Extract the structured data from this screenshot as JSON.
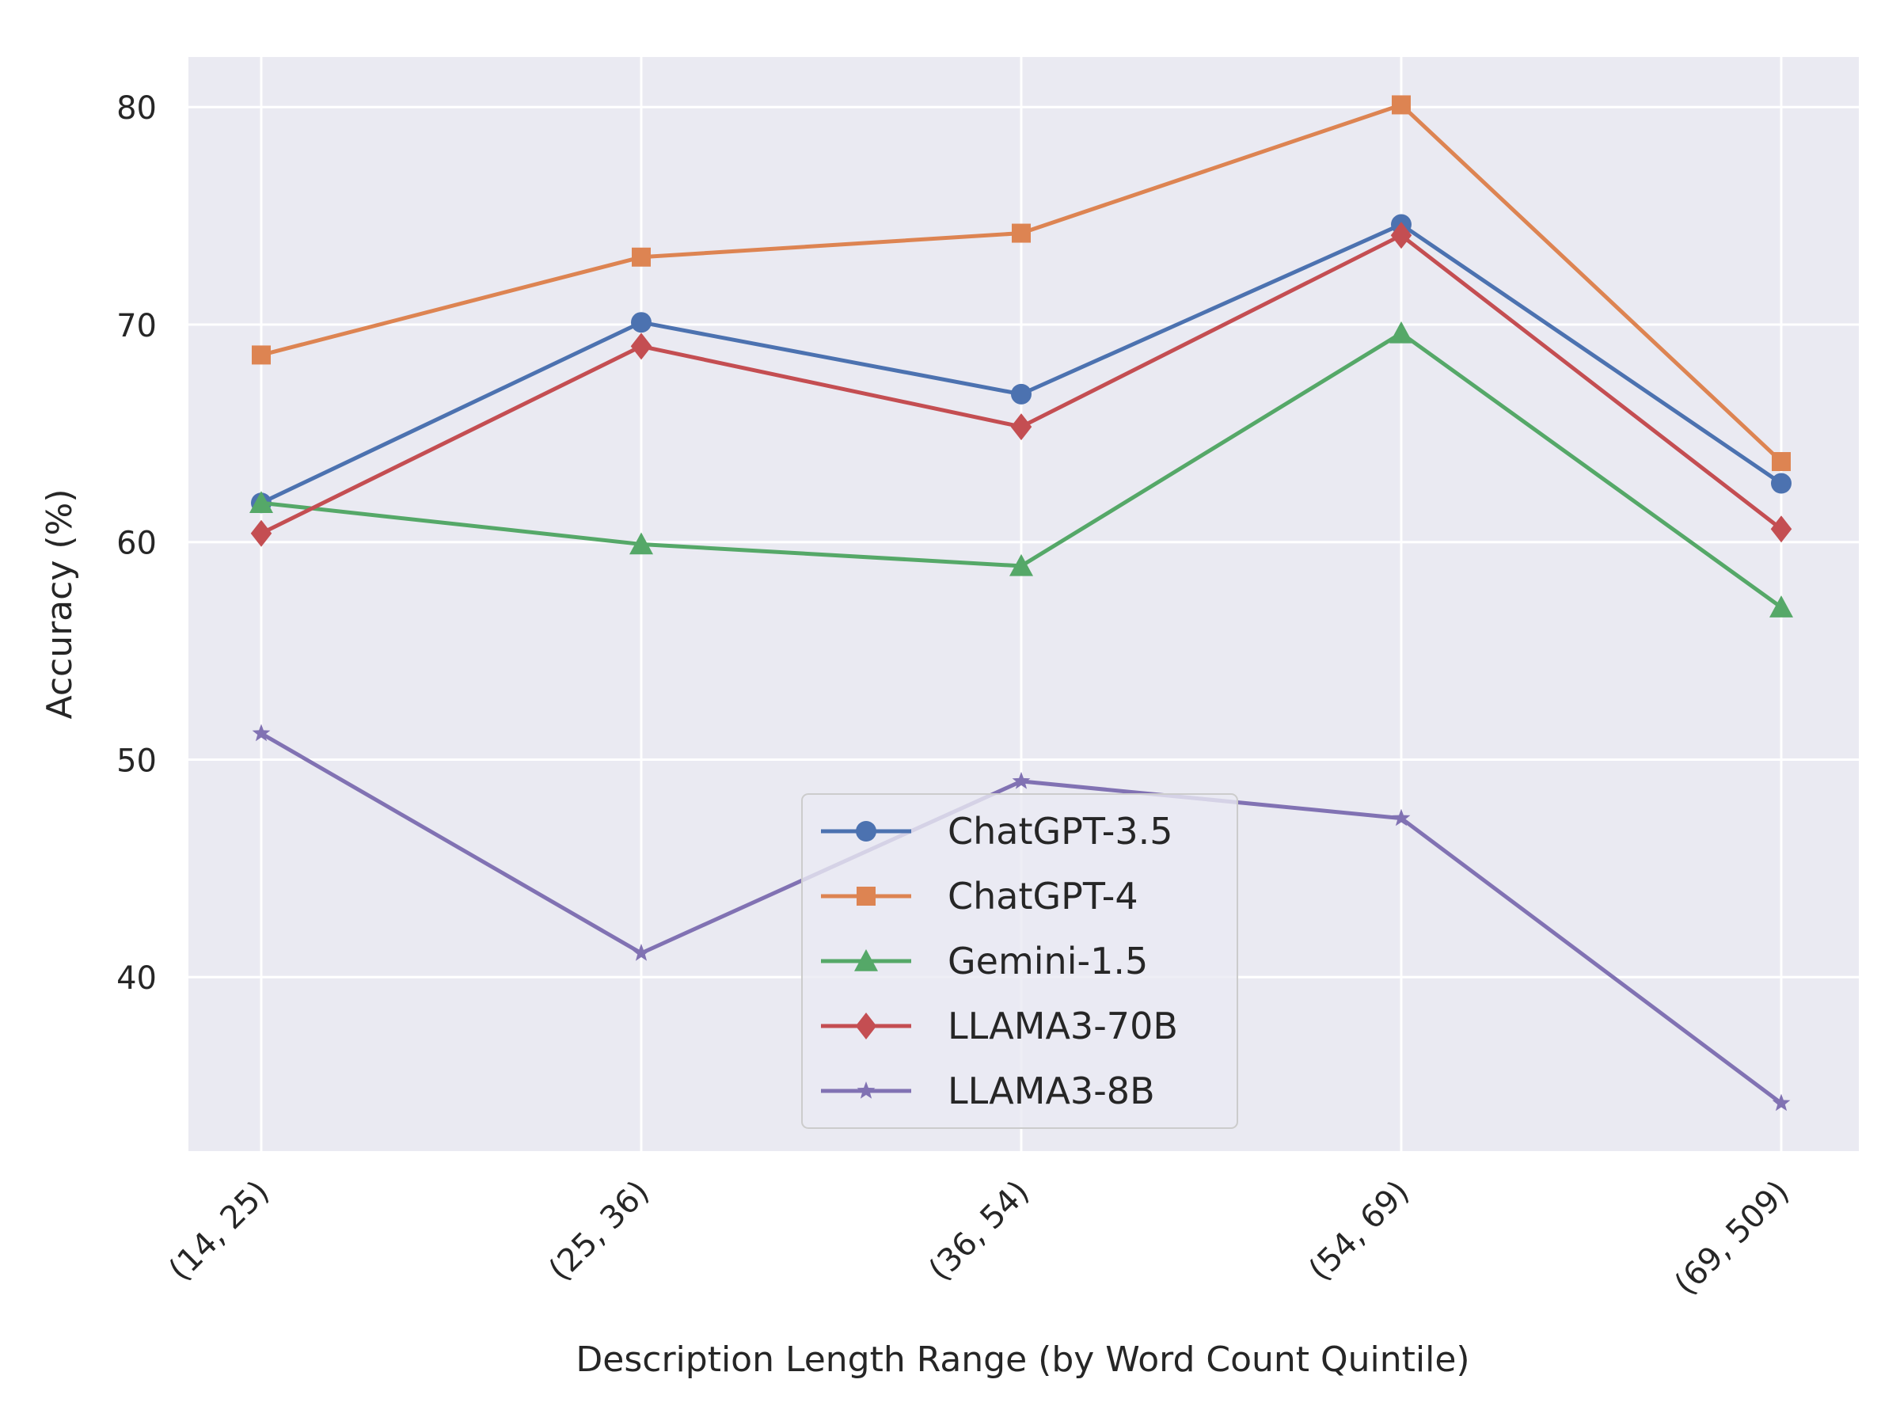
{
  "chart_data": {
    "type": "line",
    "title": "",
    "xlabel": "Description Length Range (by Word Count Quintile)",
    "ylabel": "Accuracy (%)",
    "categories": [
      "(14, 25)",
      "(25, 36)",
      "(36, 54)",
      "(54, 69)",
      "(69, 509)"
    ],
    "ylim": [
      32,
      82.3
    ],
    "yticks": [
      40,
      50,
      60,
      70,
      80
    ],
    "grid": true,
    "legend_position": "lower-center",
    "series": [
      {
        "name": "ChatGPT-3.5",
        "color": "#4c72b0",
        "marker": "circle",
        "values": [
          61.8,
          70.1,
          66.8,
          74.6,
          62.7
        ]
      },
      {
        "name": "ChatGPT-4",
        "color": "#dd8452",
        "marker": "square",
        "values": [
          68.6,
          73.1,
          74.2,
          80.1,
          63.7
        ]
      },
      {
        "name": "Gemini-1.5",
        "color": "#55a868",
        "marker": "triangle",
        "values": [
          61.8,
          59.9,
          58.9,
          69.6,
          57.0
        ]
      },
      {
        "name": "LLAMA3-70B",
        "color": "#c44e52",
        "marker": "diamond",
        "values": [
          60.4,
          69.0,
          65.3,
          74.1,
          60.6
        ]
      },
      {
        "name": "LLAMA3-8B",
        "color": "#8172b3",
        "marker": "star",
        "values": [
          51.2,
          41.1,
          49.0,
          47.3,
          34.2
        ]
      }
    ]
  }
}
